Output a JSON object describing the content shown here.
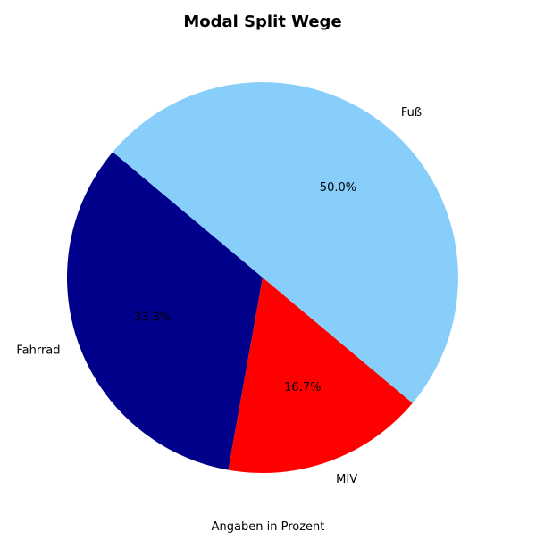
{
  "chart_data": {
    "type": "pie",
    "title": "Modal Split Wege",
    "xlabel": "Angaben in Prozent",
    "start_angle_deg": 140,
    "direction": "counterclockwise",
    "slices": [
      {
        "label": "Fahrrad",
        "value": 33.3,
        "pct_label": "33.3%",
        "color": "#00008b"
      },
      {
        "label": "MIV",
        "value": 16.7,
        "pct_label": "16.7%",
        "color": "#ff0000"
      },
      {
        "label": "Fuß",
        "value": 50.0,
        "pct_label": "50.0%",
        "color": "#87cefa"
      }
    ]
  }
}
